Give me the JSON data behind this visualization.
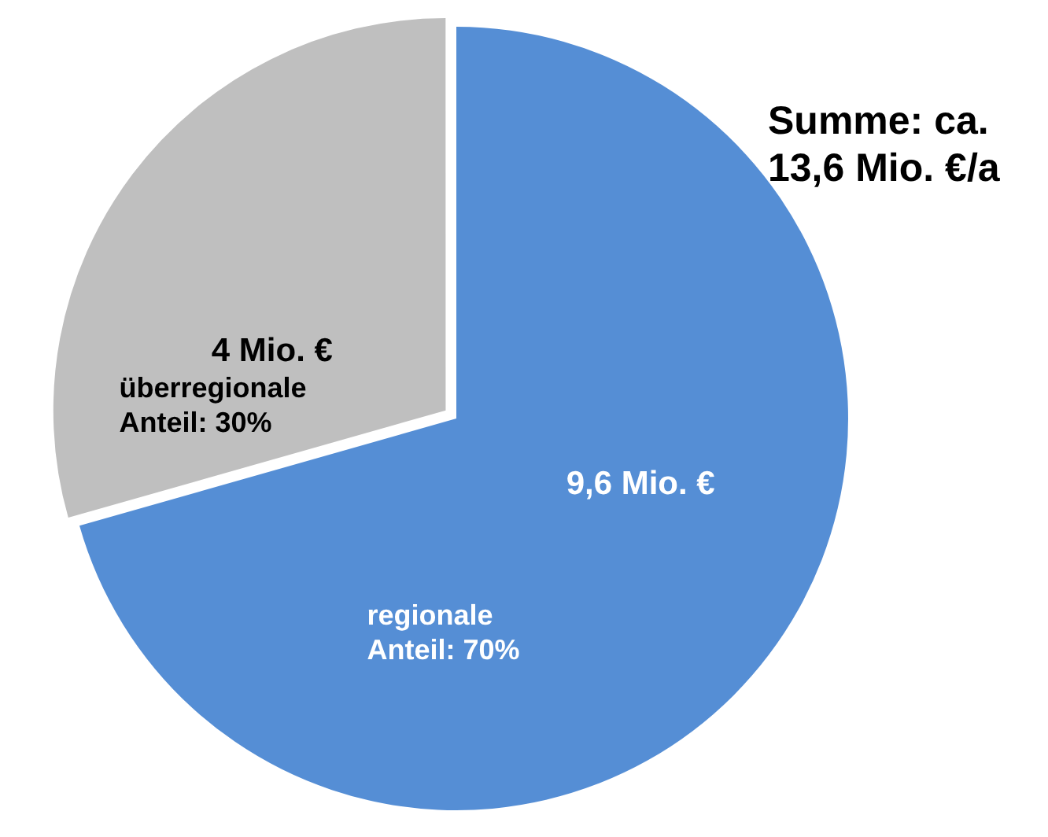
{
  "chart_data": {
    "type": "pie",
    "categories": [
      "regionale\nAnteil: 70%",
      "überregionale\nAnteil: 30%"
    ],
    "values": [
      9.6,
      4
    ],
    "colors": [
      "#558ed5",
      "#bfbfbf"
    ],
    "value_labels": [
      "9,6 Mio. €",
      "4 Mio. €"
    ],
    "annotations": [
      "Summe: ca.\n13,6 Mio. €/a"
    ],
    "legend": false
  }
}
